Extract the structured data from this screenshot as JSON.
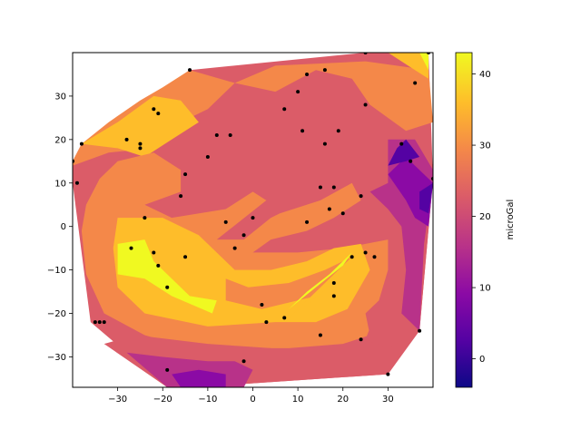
{
  "chart_data": {
    "type": "contourf",
    "colormap": "plasma",
    "xlim": [
      -40,
      40
    ],
    "ylim": [
      -37,
      40
    ],
    "x_ticks": [
      -30,
      -20,
      -10,
      0,
      10,
      20,
      30
    ],
    "y_ticks": [
      -30,
      -20,
      -10,
      0,
      10,
      20,
      30
    ],
    "x_tick_labels": [
      "−30",
      "−20",
      "−10",
      "0",
      "10",
      "20",
      "30"
    ],
    "y_tick_labels": [
      "−30",
      "−20",
      "−10",
      "0",
      "10",
      "20",
      "30"
    ],
    "colorbar": {
      "label": "microGal",
      "range": [
        -4,
        43
      ],
      "ticks": [
        0,
        10,
        20,
        30,
        40
      ],
      "tick_labels": [
        "0",
        "10",
        "20",
        "30",
        "40"
      ],
      "levels": [
        -4,
        1.5,
        7,
        12.5,
        18,
        23.5,
        29,
        34.5,
        43
      ]
    },
    "level_colors": [
      "#0d0887",
      "#5402a3",
      "#8b0aa5",
      "#b83289",
      "#db5c68",
      "#f48849",
      "#febd2a",
      "#f0f921"
    ],
    "hull": [
      [
        -40,
        15
      ],
      [
        -38,
        19
      ],
      [
        -14,
        36
      ],
      [
        25,
        40
      ],
      [
        39,
        40
      ],
      [
        40,
        11
      ],
      [
        37,
        -24
      ],
      [
        30,
        -34
      ],
      [
        -13,
        -37
      ],
      [
        -19,
        -37
      ],
      [
        -36,
        -22
      ],
      [
        -40,
        10
      ]
    ],
    "regions": [
      {
        "level": 5,
        "points": [
          [
            -40,
            15
          ],
          [
            -38,
            19
          ],
          [
            -32,
            24
          ],
          [
            -25,
            29
          ],
          [
            -20,
            32
          ],
          [
            -14,
            36
          ],
          [
            -4,
            33
          ],
          [
            -10,
            27
          ],
          [
            -18,
            23
          ],
          [
            -22,
            18
          ],
          [
            -32,
            17
          ],
          [
            -40,
            14
          ]
        ]
      },
      {
        "level": 6,
        "points": [
          [
            -38,
            19
          ],
          [
            -30,
            24
          ],
          [
            -22,
            30
          ],
          [
            -16,
            29
          ],
          [
            -12,
            24
          ],
          [
            -18,
            20
          ],
          [
            -24,
            16
          ],
          [
            -30,
            18
          ]
        ]
      },
      {
        "level": 5,
        "points": [
          [
            -4,
            33
          ],
          [
            5,
            37
          ],
          [
            25,
            38
          ],
          [
            39,
            36
          ],
          [
            40,
            24
          ],
          [
            34,
            22
          ],
          [
            26,
            28
          ],
          [
            22,
            34
          ],
          [
            14,
            36
          ],
          [
            5,
            31
          ]
        ]
      },
      {
        "level": 6,
        "points": [
          [
            30,
            40
          ],
          [
            39,
            40
          ],
          [
            39,
            34
          ],
          [
            36,
            36
          ]
        ]
      },
      {
        "level": 7,
        "points": [
          [
            37,
            40
          ],
          [
            39,
            40
          ],
          [
            39,
            36
          ]
        ]
      },
      {
        "level": 5,
        "points": [
          [
            -30,
            15
          ],
          [
            -22,
            17
          ],
          [
            -16,
            13
          ],
          [
            -16,
            8
          ],
          [
            -24,
            5
          ],
          [
            -18,
            2
          ],
          [
            -6,
            4
          ],
          [
            0,
            8
          ],
          [
            3,
            6
          ],
          [
            -8,
            -3
          ],
          [
            -2,
            -3
          ],
          [
            4,
            2
          ],
          [
            6,
            3
          ],
          [
            15,
            6
          ],
          [
            22,
            10
          ],
          [
            24,
            6
          ],
          [
            18,
            2
          ],
          [
            12,
            -1
          ],
          [
            4,
            -3
          ],
          [
            0,
            -6
          ],
          [
            10,
            -6
          ],
          [
            20,
            -5
          ],
          [
            30,
            -3
          ],
          [
            30,
            -10
          ],
          [
            28,
            -17
          ],
          [
            25,
            -20
          ],
          [
            26,
            -25
          ],
          [
            20,
            -27
          ],
          [
            8,
            -28
          ],
          [
            -14,
            -28
          ],
          [
            -24,
            -25
          ],
          [
            -33,
            -20
          ],
          [
            -37,
            -11
          ],
          [
            -38,
            -1
          ],
          [
            -37,
            5
          ],
          [
            -34,
            11
          ]
        ]
      },
      {
        "level": 6,
        "points": [
          [
            -30,
            2
          ],
          [
            -20,
            2
          ],
          [
            -12,
            -2
          ],
          [
            -4,
            -10
          ],
          [
            4,
            -10
          ],
          [
            12,
            -8
          ],
          [
            18,
            -5
          ],
          [
            24,
            -4
          ],
          [
            26,
            -10
          ],
          [
            21,
            -19
          ],
          [
            14,
            -22
          ],
          [
            5,
            -22
          ],
          [
            -10,
            -23
          ],
          [
            -24,
            -20
          ],
          [
            -30,
            -14
          ],
          [
            -31,
            -5
          ]
        ]
      },
      {
        "level": 5,
        "points": [
          [
            -6,
            -12
          ],
          [
            -1,
            -14
          ],
          [
            8,
            -13
          ],
          [
            16,
            -10
          ],
          [
            22,
            -7
          ],
          [
            14,
            -16
          ],
          [
            2,
            -19
          ],
          [
            -6,
            -17
          ]
        ]
      },
      {
        "level": 7,
        "points": [
          [
            -30,
            -4
          ],
          [
            -24,
            -3
          ],
          [
            -22,
            -8
          ],
          [
            -14,
            -16
          ],
          [
            -8,
            -17
          ],
          [
            -9,
            -20
          ],
          [
            -18,
            -16
          ],
          [
            -24,
            -12
          ],
          [
            -30,
            -11
          ]
        ]
      },
      {
        "level": 6,
        "points": [
          [
            8,
            -21
          ],
          [
            12,
            -18
          ],
          [
            18,
            -13
          ],
          [
            22,
            -9
          ],
          [
            24,
            -5
          ],
          [
            21,
            -8
          ],
          [
            16,
            -13
          ],
          [
            12,
            -17
          ]
        ]
      },
      {
        "level": 7,
        "points": [
          [
            8,
            -19
          ],
          [
            14,
            -14
          ],
          [
            20,
            -9
          ],
          [
            22,
            -6
          ],
          [
            17,
            -11
          ],
          [
            12,
            -15
          ]
        ]
      },
      {
        "level": 4,
        "points": [
          [
            -33,
            -27
          ],
          [
            -26,
            -25
          ],
          [
            -10,
            -27
          ],
          [
            4,
            -28
          ],
          [
            14,
            -29
          ],
          [
            22,
            -28
          ],
          [
            29,
            -26
          ],
          [
            30,
            -34
          ],
          [
            -13,
            -37
          ],
          [
            -19,
            -37
          ]
        ]
      },
      {
        "level": 3,
        "points": [
          [
            -28,
            -29
          ],
          [
            -20,
            -30
          ],
          [
            -10,
            -31
          ],
          [
            -4,
            -31
          ],
          [
            0,
            -33
          ],
          [
            -2,
            -37
          ],
          [
            -19,
            -37
          ]
        ]
      },
      {
        "level": 2,
        "points": [
          [
            -18,
            -34
          ],
          [
            -12,
            -33
          ],
          [
            -6,
            -34
          ],
          [
            -6,
            -37
          ],
          [
            -16,
            -37
          ]
        ]
      },
      {
        "level": 4,
        "points": [
          [
            22,
            12
          ],
          [
            27,
            12
          ],
          [
            32,
            20
          ],
          [
            37,
            20
          ],
          [
            40,
            14
          ],
          [
            40,
            11
          ],
          [
            37,
            -24
          ],
          [
            30,
            -28
          ],
          [
            25,
            -26
          ],
          [
            28,
            -18
          ],
          [
            32,
            -10
          ],
          [
            30,
            -2
          ],
          [
            26,
            4
          ]
        ]
      },
      {
        "level": 3,
        "points": [
          [
            26,
            8
          ],
          [
            30,
            10
          ],
          [
            30,
            20
          ],
          [
            36,
            20
          ],
          [
            40,
            13
          ],
          [
            40,
            11
          ],
          [
            38,
            -4
          ],
          [
            37,
            -24
          ],
          [
            33,
            -20
          ],
          [
            34,
            -10
          ],
          [
            33,
            0
          ],
          [
            30,
            4
          ]
        ]
      },
      {
        "level": 2,
        "points": [
          [
            30,
            12
          ],
          [
            34,
            16
          ],
          [
            36,
            14
          ],
          [
            40,
            10
          ],
          [
            39,
            0
          ],
          [
            36,
            2
          ],
          [
            34,
            6
          ]
        ]
      },
      {
        "level": 1,
        "points": [
          [
            30,
            14
          ],
          [
            32,
            18
          ],
          [
            34,
            20
          ],
          [
            37,
            16
          ],
          [
            34,
            15
          ]
        ]
      },
      {
        "level": 1,
        "points": [
          [
            37,
            8
          ],
          [
            40,
            10
          ],
          [
            39,
            3
          ],
          [
            37,
            4
          ]
        ]
      }
    ],
    "points": [
      [
        -40,
        15
      ],
      [
        -39,
        10
      ],
      [
        -38,
        19
      ],
      [
        -14,
        36
      ],
      [
        -22,
        27
      ],
      [
        -21,
        26
      ],
      [
        -28,
        20
      ],
      [
        -25,
        19
      ],
      [
        -25,
        18
      ],
      [
        -8,
        21
      ],
      [
        -5,
        21
      ],
      [
        -10,
        16
      ],
      [
        -15,
        12
      ],
      [
        -16,
        7
      ],
      [
        -24,
        2
      ],
      [
        -6,
        1
      ],
      [
        0,
        2
      ],
      [
        -2,
        -2
      ],
      [
        -4,
        -5
      ],
      [
        -27,
        -5
      ],
      [
        -22,
        -6
      ],
      [
        -21,
        -9
      ],
      [
        -15,
        -7
      ],
      [
        -19,
        -14
      ],
      [
        -35,
        -22
      ],
      [
        -34,
        -22
      ],
      [
        -33,
        -22
      ],
      [
        -19,
        -33
      ],
      [
        -2,
        -31
      ],
      [
        2,
        -18
      ],
      [
        3,
        -22
      ],
      [
        7,
        -21
      ],
      [
        12,
        1
      ],
      [
        15,
        9
      ],
      [
        18,
        9
      ],
      [
        17,
        4
      ],
      [
        20,
        3
      ],
      [
        24,
        7
      ],
      [
        22,
        -7
      ],
      [
        25,
        -6
      ],
      [
        27,
        -7
      ],
      [
        18,
        -13
      ],
      [
        18,
        -16
      ],
      [
        15,
        -25
      ],
      [
        24,
        -26
      ],
      [
        30,
        -34
      ],
      [
        37,
        -24
      ],
      [
        11,
        22
      ],
      [
        16,
        19
      ],
      [
        19,
        22
      ],
      [
        33,
        19
      ],
      [
        35,
        15
      ],
      [
        40,
        11
      ],
      [
        7,
        27
      ],
      [
        10,
        31
      ],
      [
        12,
        35
      ],
      [
        16,
        36
      ],
      [
        25,
        28
      ],
      [
        25,
        40
      ],
      [
        36,
        33
      ],
      [
        39,
        40
      ]
    ]
  }
}
